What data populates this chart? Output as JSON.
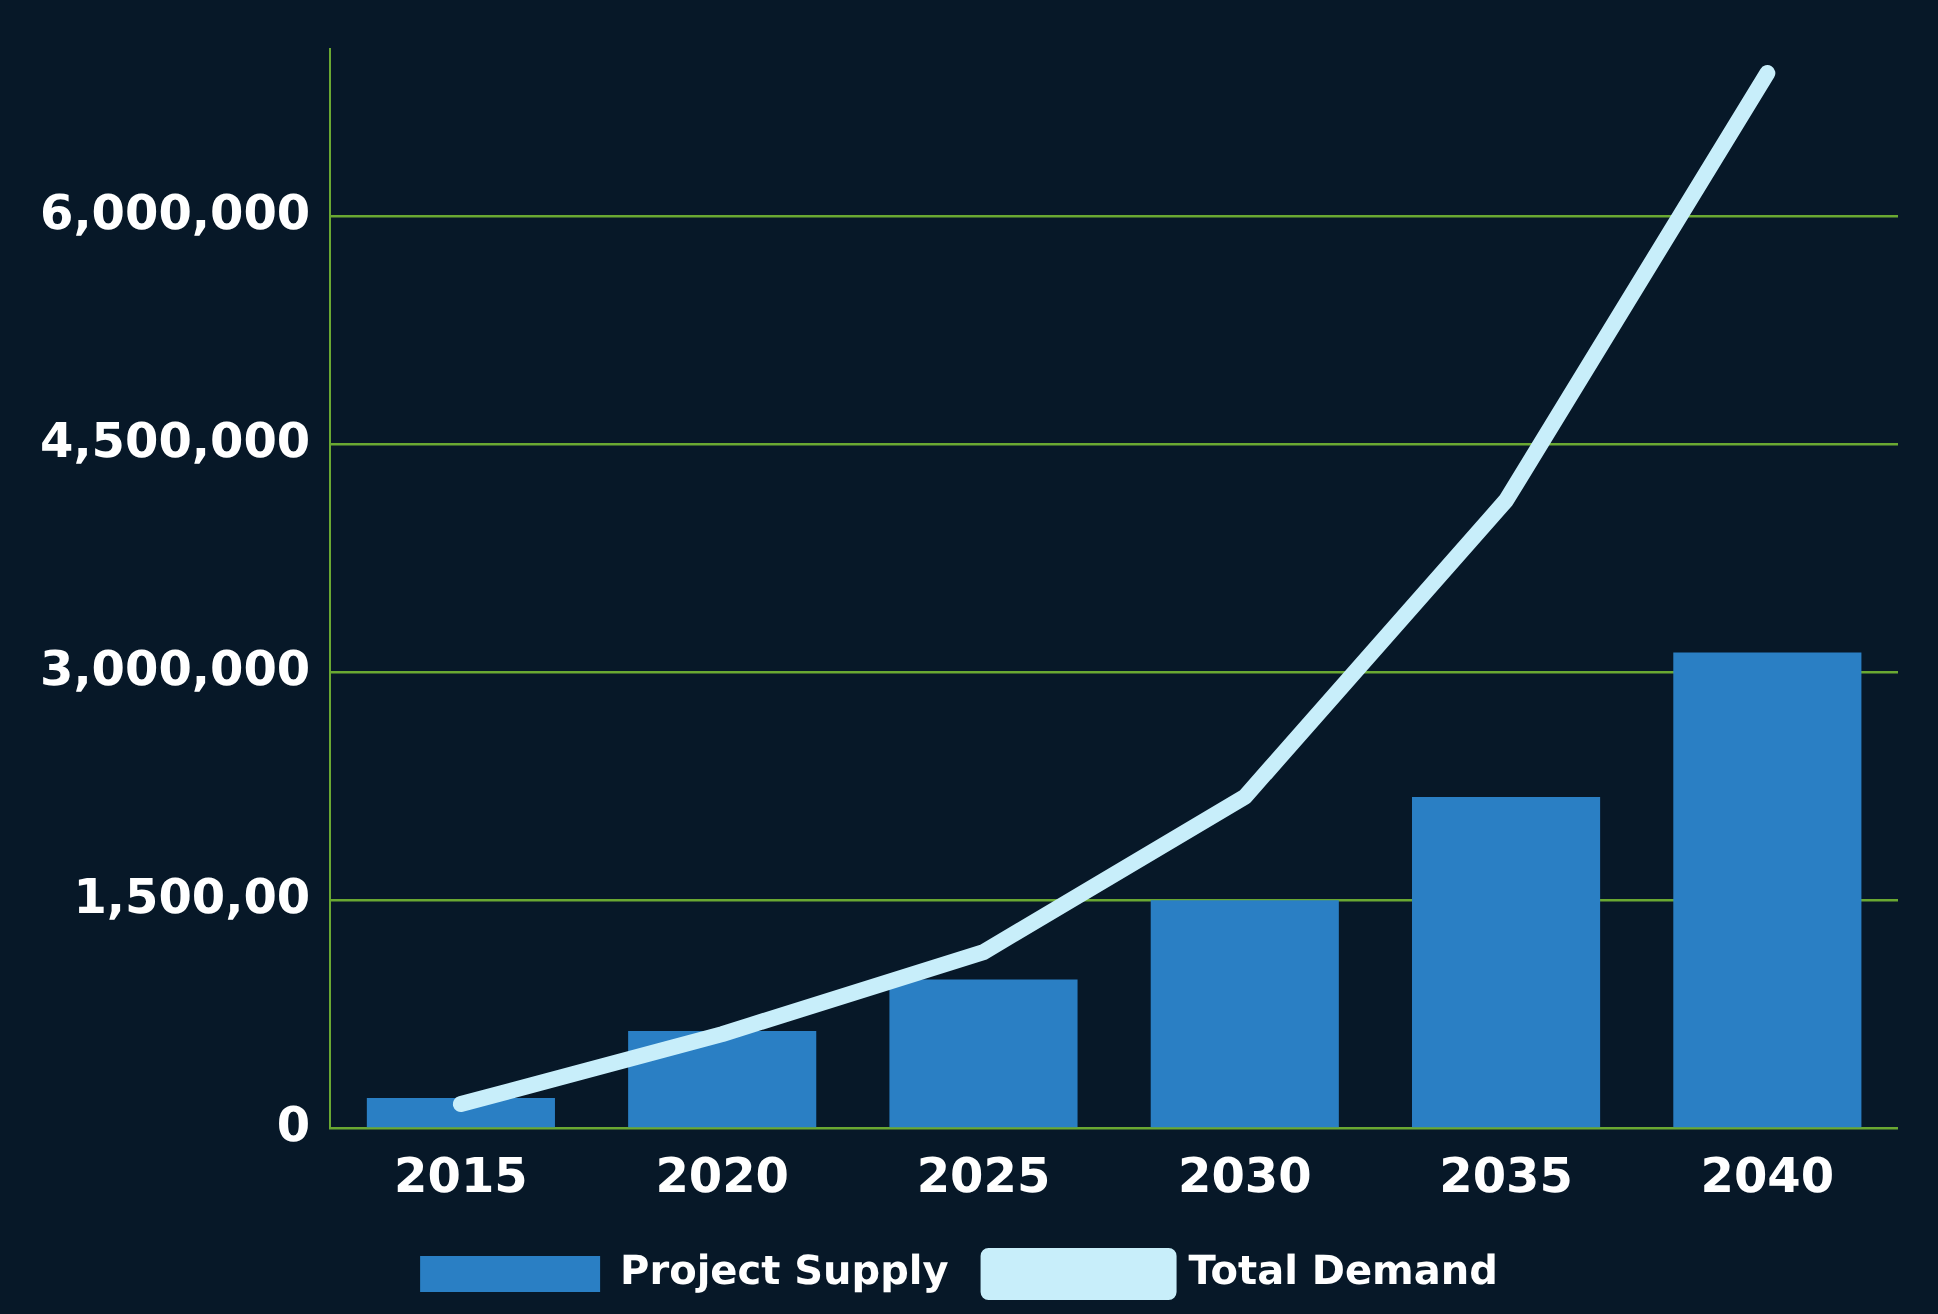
{
  "chart_data": {
    "type": "bar",
    "categories": [
      "2015",
      "2020",
      "2025",
      "2030",
      "2035",
      "2040"
    ],
    "series": [
      {
        "name": "Project Supply",
        "color": "#2a7fc4",
        "values": [
          200000,
          640000,
          980000,
          1500000,
          2180000,
          3130000
        ]
      },
      {
        "name": "Total Demand",
        "type": "line",
        "color": "#c8eefa",
        "values": [
          160000,
          620000,
          1160000,
          2180000,
          4130000,
          6940000
        ]
      }
    ],
    "ylim": [
      0,
      7100000
    ],
    "yticks": [
      0,
      {
        "value": 1500000,
        "label": "1,500,00"
      },
      {
        "value": 3000000,
        "label": "3,000,000"
      },
      {
        "value": 4500000,
        "label": "4,500,000"
      },
      {
        "value": 6000000,
        "label": "6,000,000"
      }
    ],
    "grid": "y",
    "legend": "bottom",
    "marker": "none"
  }
}
